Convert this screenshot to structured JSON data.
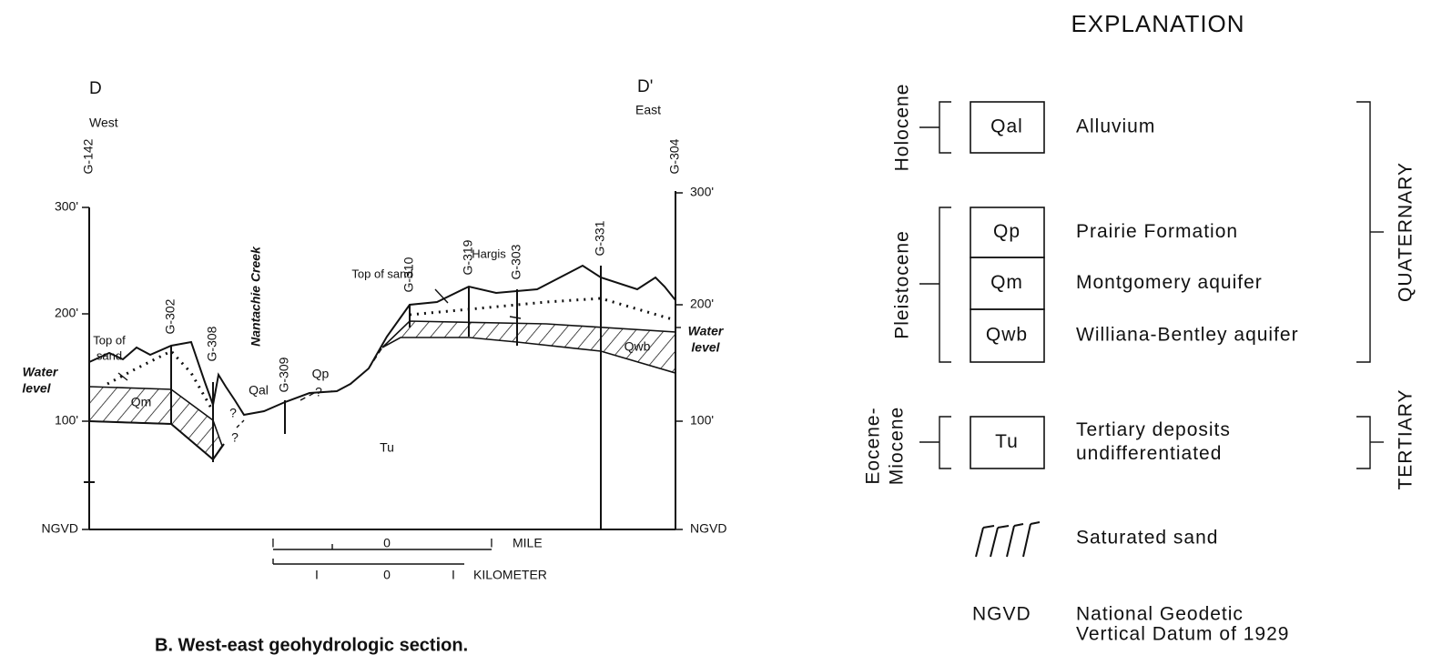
{
  "section": {
    "left_label": "D",
    "right_label": "D'",
    "west": "West",
    "east": "East",
    "wells": [
      "G-142",
      "G-302",
      "G-308",
      "G-309",
      "G-310",
      "G-319",
      "G-303",
      "G-331",
      "G-304"
    ],
    "left_axis": [
      "300'",
      "200'",
      "100'",
      "NGVD"
    ],
    "right_axis": [
      "300'",
      "200'",
      "100'",
      "NGVD"
    ],
    "annotations": {
      "top_of_sand_left": [
        "Top of",
        "sand"
      ],
      "top_of_sand_right": "Top of sand",
      "water_level_left": [
        "Water",
        "level"
      ],
      "water_level_right": [
        "Water",
        "level"
      ],
      "creek": "Nantachie Creek",
      "town": "Hargis"
    },
    "units": {
      "qm": "Qm",
      "qal": "Qal",
      "qp": "Qp",
      "tu": "Tu",
      "qwb": "Qwb"
    },
    "queries": [
      "?",
      "?",
      "?"
    ],
    "scale": {
      "mile_ticks": [
        "I",
        "0",
        "I"
      ],
      "mile": "MILE",
      "km_ticks": [
        "I",
        "0",
        "I"
      ],
      "kilometer": "KILOMETER"
    }
  },
  "caption": "B. West-east geohydrologic section.",
  "explanation": {
    "title": "EXPLANATION",
    "epochs": {
      "holocene": "Holocene",
      "pleistocene": "Pleistocene",
      "eocene_miocene": [
        "Eocene-",
        "Miocene"
      ]
    },
    "periods": {
      "quaternary": "QUATERNARY",
      "tertiary": "TERTIARY"
    },
    "units": [
      {
        "code": "Qal",
        "description": [
          "Alluvium"
        ]
      },
      {
        "code": "Qp",
        "description": [
          "Prairie Formation"
        ]
      },
      {
        "code": "Qm",
        "description": [
          "Montgomery aquifer"
        ]
      },
      {
        "code": "Qwb",
        "description": [
          "Williana-Bentley aquifer"
        ]
      },
      {
        "code": "Tu",
        "description": [
          "Tertiary deposits",
          "undifferentiated"
        ]
      }
    ],
    "saturated_sand": "Saturated sand",
    "ngvd": {
      "code": "NGVD",
      "description": [
        "National Geodetic",
        "Vertical Datum of 1929"
      ]
    }
  }
}
